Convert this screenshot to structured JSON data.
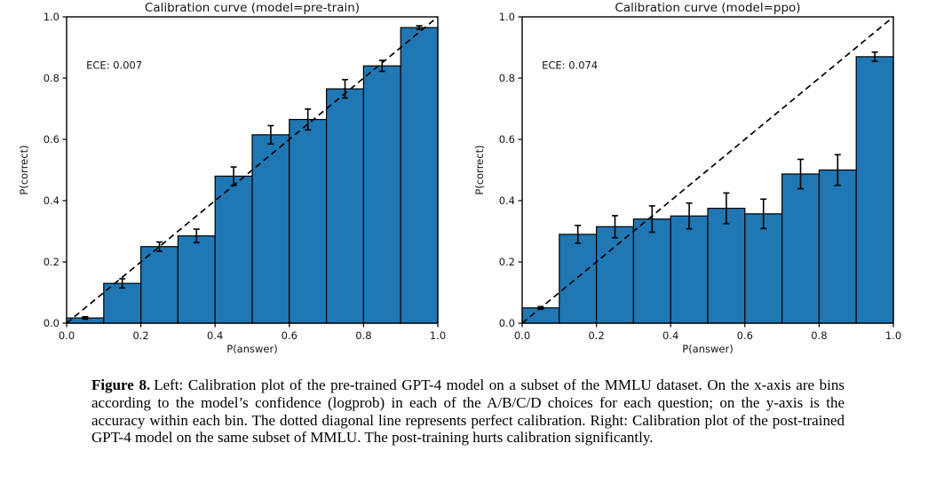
{
  "figure": {
    "caption_label": "Figure 8.",
    "caption_text": "Left: Calibration plot of the pre-trained GPT-4 model on a subset of the MMLU dataset. On the x-axis are bins according to the model’s confidence (logprob) in each of the A/B/C/D choices for each question; on the y-axis is the accuracy within each bin. The dotted diagonal line represents perfect calibration. Right: Calibration plot of the post-trained GPT-4 model on the same subset of MMLU. The post-training hurts calibration significantly."
  },
  "chart_data": [
    {
      "type": "bar",
      "title": "Calibration curve (model=pre-train)",
      "annotation": "ECE: 0.007",
      "xlabel": "P(answer)",
      "ylabel": "P(correct)",
      "xlim": [
        0.0,
        1.0
      ],
      "ylim": [
        0.0,
        1.0
      ],
      "xticks": [
        "0.0",
        "0.2",
        "0.4",
        "0.6",
        "0.8",
        "1.0"
      ],
      "yticks": [
        "0.0",
        "0.2",
        "0.4",
        "0.6",
        "0.8",
        "1.0"
      ],
      "bin_edges": [
        0.0,
        0.1,
        0.2,
        0.3,
        0.4,
        0.5,
        0.6,
        0.7,
        0.8,
        0.9,
        1.0
      ],
      "values": [
        0.017,
        0.13,
        0.25,
        0.285,
        0.48,
        0.615,
        0.665,
        0.765,
        0.84,
        0.965
      ],
      "errors": [
        0.004,
        0.015,
        0.015,
        0.022,
        0.03,
        0.03,
        0.034,
        0.03,
        0.018,
        0.006
      ],
      "bar_color": "#1f77b4",
      "bar_edge_color": "#000000",
      "diagonal_line": {
        "style": "dashed",
        "from": [
          0.0,
          0.0
        ],
        "to": [
          1.0,
          1.0
        ],
        "color": "#000000"
      },
      "grid": false,
      "legend": false
    },
    {
      "type": "bar",
      "title": "Calibration curve (model=ppo)",
      "annotation": "ECE: 0.074",
      "xlabel": "P(answer)",
      "ylabel": "P(correct)",
      "xlim": [
        0.0,
        1.0
      ],
      "ylim": [
        0.0,
        1.0
      ],
      "xticks": [
        "0.0",
        "0.2",
        "0.4",
        "0.6",
        "0.8",
        "1.0"
      ],
      "yticks": [
        "0.0",
        "0.2",
        "0.4",
        "0.6",
        "0.8",
        "1.0"
      ],
      "bin_edges": [
        0.0,
        0.1,
        0.2,
        0.3,
        0.4,
        0.5,
        0.6,
        0.7,
        0.8,
        0.9,
        1.0
      ],
      "values": [
        0.05,
        0.29,
        0.315,
        0.34,
        0.35,
        0.375,
        0.357,
        0.487,
        0.5,
        0.87
      ],
      "errors": [
        0.004,
        0.029,
        0.036,
        0.043,
        0.042,
        0.05,
        0.048,
        0.048,
        0.05,
        0.015
      ],
      "bar_color": "#1f77b4",
      "bar_edge_color": "#000000",
      "diagonal_line": {
        "style": "dashed",
        "from": [
          0.0,
          0.0
        ],
        "to": [
          1.0,
          1.0
        ],
        "color": "#000000"
      },
      "grid": false,
      "legend": false
    }
  ]
}
